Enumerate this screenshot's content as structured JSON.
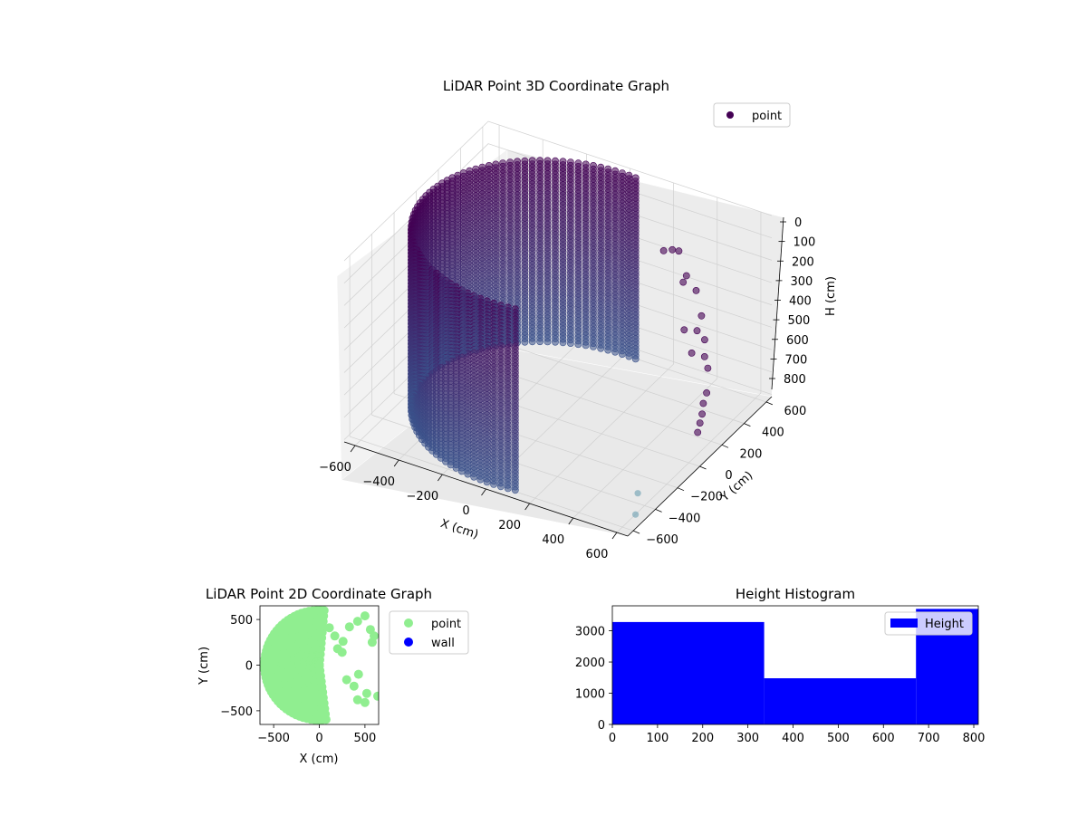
{
  "colors": {
    "point3d_dark": "#440154",
    "point3d_mid": "#3b528b",
    "point3d_light": "#6a9fb0",
    "point2d": "#90ee90",
    "wall2d": "#0000ff",
    "histogram": "#0000ff",
    "pane": "#f2f2f2",
    "grid": "#d0d0d0"
  },
  "chart_data": [
    {
      "type": "scatter",
      "projection": "3d",
      "title": "LiDAR Point 3D Coordinate Graph",
      "xlabel": "X (cm)",
      "ylabel": "Y (cm)",
      "zlabel": "H (cm)",
      "xlim": [
        -650,
        650
      ],
      "ylim": [
        -650,
        650
      ],
      "zlim": [
        810,
        0
      ],
      "xticks": [
        -600,
        -400,
        -200,
        0,
        200,
        400,
        600
      ],
      "yticks": [
        -600,
        -400,
        -200,
        0,
        200,
        400,
        600
      ],
      "zticks": [
        0,
        100,
        200,
        300,
        400,
        500,
        600,
        700,
        800
      ],
      "z_inverted": true,
      "grid": true,
      "legend_position": "upper-right",
      "series": [
        {
          "name": "point",
          "shape": "cylinder",
          "radius": 600,
          "h_range": [
            0,
            810
          ],
          "h_step": 15,
          "angle_range_deg": [
            85,
            280
          ],
          "angle_step_deg": 3,
          "note": "dense ring points between ~85 and ~280 degrees; sparse clusters on the open side"
        }
      ],
      "outliers": [
        {
          "x": 620,
          "y": -500,
          "h": 700
        },
        {
          "x": 640,
          "y": -560,
          "h": 760
        }
      ]
    },
    {
      "type": "scatter",
      "title": "LiDAR Point 2D Coordinate Graph",
      "xlabel": "X (cm)",
      "ylabel": "Y (cm)",
      "xlim": [
        -650,
        650
      ],
      "ylim": [
        -650,
        650
      ],
      "xticks": [
        -500,
        0,
        500
      ],
      "yticks": [
        -500,
        0,
        500
      ],
      "legend_position": "outside-right",
      "series": [
        {
          "name": "point"
        },
        {
          "name": "wall",
          "x": [],
          "y": []
        }
      ],
      "sparse_points": [
        {
          "x": 110,
          "y": 410
        },
        {
          "x": 170,
          "y": 320
        },
        {
          "x": 260,
          "y": 260
        },
        {
          "x": 330,
          "y": 420
        },
        {
          "x": 420,
          "y": 480
        },
        {
          "x": 500,
          "y": 540
        },
        {
          "x": 560,
          "y": 390
        },
        {
          "x": 600,
          "y": 320
        },
        {
          "x": 250,
          "y": 140
        },
        {
          "x": 300,
          "y": -160
        },
        {
          "x": 430,
          "y": -100
        },
        {
          "x": 380,
          "y": -230
        },
        {
          "x": 420,
          "y": -380
        },
        {
          "x": 500,
          "y": -410
        },
        {
          "x": 640,
          "y": -340
        },
        {
          "x": 520,
          "y": -310
        },
        {
          "x": 580,
          "y": 250
        },
        {
          "x": 200,
          "y": 180
        }
      ]
    },
    {
      "type": "bar",
      "subtype": "histogram",
      "title": "Height Histogram",
      "xlim": [
        0,
        810
      ],
      "ylim": [
        0,
        3800
      ],
      "xticks": [
        0,
        100,
        200,
        300,
        400,
        500,
        600,
        700,
        800
      ],
      "yticks": [
        0,
        1000,
        2000,
        3000
      ],
      "legend_position": "upper-right",
      "series": [
        {
          "name": "Height",
          "bins": [
            [
              0,
              336
            ],
            [
              336,
              672
            ],
            [
              672,
              810
            ]
          ],
          "values": [
            3280,
            1480,
            3700
          ]
        }
      ]
    }
  ]
}
